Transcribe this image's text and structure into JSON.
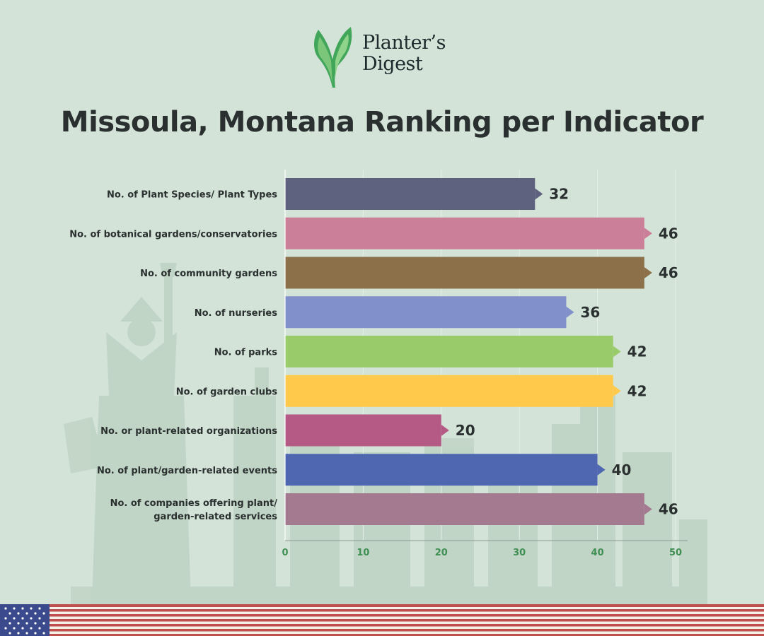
{
  "brand": {
    "name_line1": "Planter’s",
    "name_line2": "Digest",
    "logo_icon": "leaf-sprout-icon"
  },
  "title": "Missoula, Montana Ranking per Indicator",
  "decorations": {
    "background_icon": "statue-of-liberty-skyline-icon",
    "footer_icon": "us-flag-icon"
  },
  "chart_data": {
    "type": "bar",
    "orientation": "horizontal",
    "title": "Missoula, Montana Ranking per Indicator",
    "xlabel": "",
    "ylabel": "",
    "xlim": [
      0,
      50
    ],
    "xticks": [
      "0",
      "10",
      "20",
      "30",
      "40",
      "50"
    ],
    "grid": "vertical",
    "legend": "none",
    "categories": [
      [
        "No. of Plant Species/ Plant Types"
      ],
      [
        "No. of botanical gardens/conservatories"
      ],
      [
        "No. of community gardens"
      ],
      [
        "No. of nurseries"
      ],
      [
        "No. of parks"
      ],
      [
        "No. of garden clubs"
      ],
      [
        "No. or plant-related organizations"
      ],
      [
        "No. of plant/garden-related events"
      ],
      [
        "No. of companies offering plant/",
        "garden-related services"
      ]
    ],
    "values": [
      32,
      46,
      46,
      36,
      42,
      42,
      20,
      40,
      46
    ],
    "colors": [
      "#5f627e",
      "#cc7f98",
      "#8b7049",
      "#8190cb",
      "#99cb6b",
      "#ffca4b",
      "#b45a84",
      "#4e67b0",
      "#a37a8f"
    ]
  }
}
